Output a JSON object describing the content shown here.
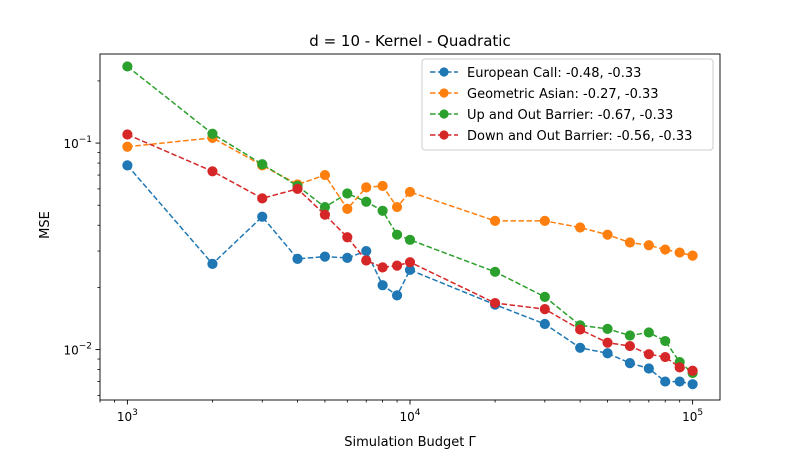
{
  "chart_data": {
    "type": "line",
    "title": "d = 10 - Kernel - Quadratic",
    "xlabel": "Simulation Budget Γ",
    "ylabel": "MSE",
    "xscale": "log",
    "yscale": "log",
    "xlim": [
      800,
      125000
    ],
    "ylim": [
      0.0057,
      0.27
    ],
    "x_major_ticks": [
      {
        "value": 1000,
        "base": "10",
        "exp": "3"
      },
      {
        "value": 10000,
        "base": "10",
        "exp": "4"
      },
      {
        "value": 100000,
        "base": "10",
        "exp": "5"
      }
    ],
    "y_major_ticks": [
      {
        "value": 0.01,
        "base": "10",
        "exp": "−2"
      },
      {
        "value": 0.1,
        "base": "10",
        "exp": "−1"
      }
    ],
    "legend_position": "top-right",
    "grid": false,
    "line_style": "dashed",
    "x": [
      1000,
      2000,
      3000,
      4000,
      5000,
      6000,
      7000,
      8000,
      9000,
      10000,
      20000,
      30000,
      40000,
      50000,
      60000,
      70000,
      80000,
      90000,
      100000
    ],
    "series": [
      {
        "name": "European Call: -0.48, -0.33",
        "color": "#1f77b4",
        "values": [
          0.078,
          0.026,
          0.044,
          0.0275,
          0.0282,
          0.0278,
          0.03,
          0.0205,
          0.0183,
          0.0243,
          0.0165,
          0.0133,
          0.0102,
          0.0096,
          0.0086,
          0.0081,
          0.007,
          0.007,
          0.0068
        ]
      },
      {
        "name": "Geometric Asian: -0.27, -0.33",
        "color": "#ff7f0e",
        "values": [
          0.096,
          0.106,
          0.078,
          0.063,
          0.07,
          0.048,
          0.061,
          0.062,
          0.049,
          0.058,
          0.042,
          0.042,
          0.039,
          0.036,
          0.033,
          0.032,
          0.0305,
          0.0295,
          0.0285
        ]
      },
      {
        "name": "Up and Out Barrier: -0.67, -0.33",
        "color": "#2ca02c",
        "values": [
          0.235,
          0.111,
          0.079,
          0.062,
          0.049,
          0.057,
          0.052,
          0.047,
          0.036,
          0.034,
          0.0238,
          0.018,
          0.0131,
          0.0126,
          0.0117,
          0.0121,
          0.011,
          0.0087,
          0.0077
        ]
      },
      {
        "name": "Down and Out Barrier: -0.56, -0.33",
        "color": "#d62728",
        "values": [
          0.11,
          0.073,
          0.054,
          0.06,
          0.045,
          0.035,
          0.027,
          0.025,
          0.0255,
          0.0265,
          0.0168,
          0.0157,
          0.0125,
          0.0108,
          0.0104,
          0.0095,
          0.0092,
          0.0082,
          0.0079
        ]
      }
    ]
  }
}
